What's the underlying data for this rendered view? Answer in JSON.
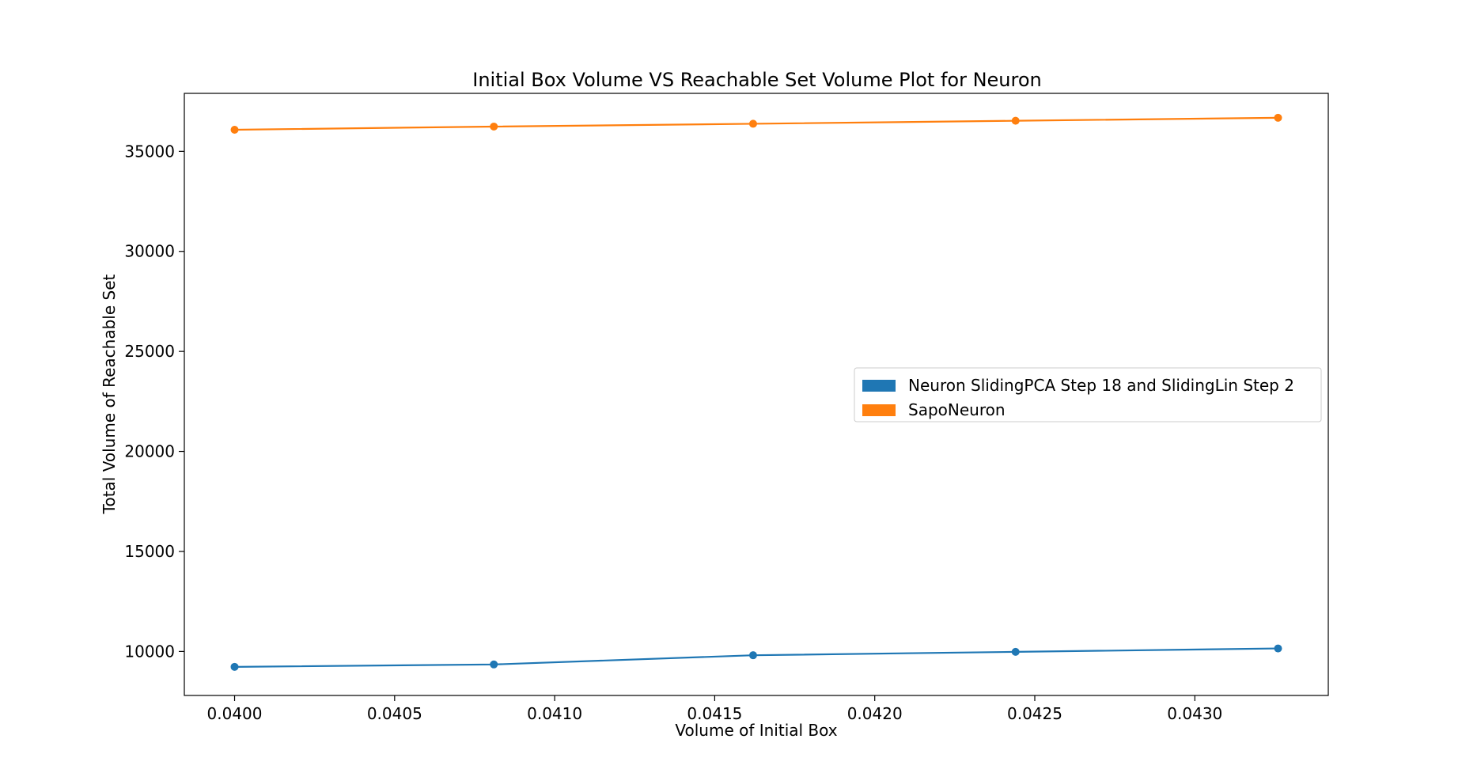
{
  "chart_data": {
    "type": "line",
    "title": "Initial Box Volume VS Reachable Set Volume Plot for Neuron",
    "xlabel": "Volume of Initial Box",
    "ylabel": "Total Volume of Reachable Set",
    "x": [
      0.04,
      0.04081,
      0.04162,
      0.04244,
      0.04326
    ],
    "xlim": [
      0.039843,
      0.043417
    ],
    "ylim": [
      7800,
      37900
    ],
    "xticks": [
      "0.0400",
      "0.0405",
      "0.0410",
      "0.0415",
      "0.0420",
      "0.0425",
      "0.0430"
    ],
    "xtick_values": [
      0.04,
      0.0405,
      0.041,
      0.0415,
      0.042,
      0.0425,
      0.043
    ],
    "yticks": [
      "10000",
      "15000",
      "20000",
      "25000",
      "30000",
      "35000"
    ],
    "ytick_values": [
      10000,
      15000,
      20000,
      25000,
      30000,
      35000
    ],
    "grid": false,
    "legend_position": "center-right",
    "series": [
      {
        "name": "Neuron SlidingPCA Step 18 and SlidingLin Step 2",
        "color": "#1f77b4",
        "values": [
          9230,
          9350,
          9810,
          9980,
          10150
        ]
      },
      {
        "name": "SapoNeuron",
        "color": "#ff7f0e",
        "values": [
          36080,
          36240,
          36380,
          36530,
          36680
        ]
      }
    ]
  }
}
